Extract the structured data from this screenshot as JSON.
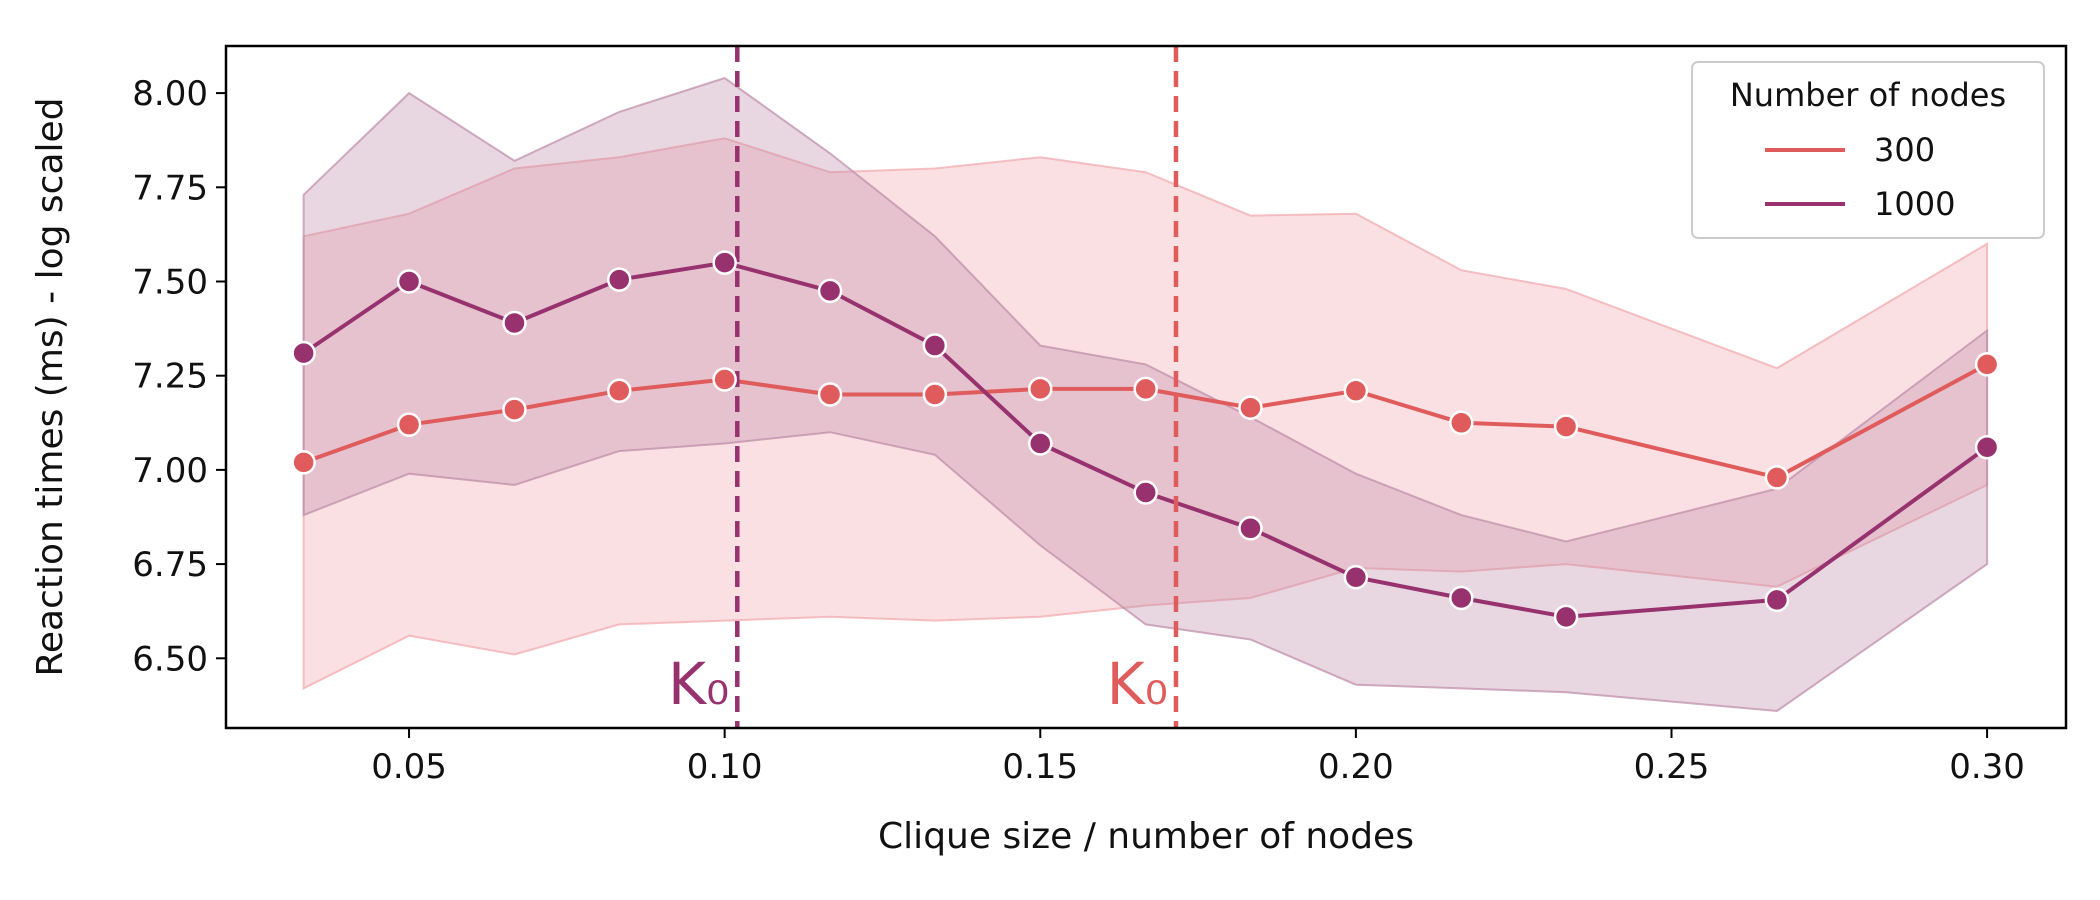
{
  "chart_data": {
    "type": "line",
    "xlabel": "Clique size / number of nodes",
    "ylabel": "Reaction times (ms) - log scaled",
    "xlim": [
      0.021,
      0.3125
    ],
    "ylim": [
      6.315,
      8.125
    ],
    "x_ticks": [
      0.05,
      0.1,
      0.15,
      0.2,
      0.25,
      0.3
    ],
    "x_tick_labels": [
      "0.05",
      "0.10",
      "0.15",
      "0.20",
      "0.25",
      "0.30"
    ],
    "y_ticks": [
      6.5,
      6.75,
      7.0,
      7.25,
      7.5,
      7.75,
      8.0
    ],
    "y_tick_labels": [
      "6.50",
      "6.75",
      "7.00",
      "7.25",
      "7.50",
      "7.75",
      "8.00"
    ],
    "grid": false,
    "legend": {
      "title": "Number of nodes",
      "placement": "top-right"
    },
    "series": [
      {
        "name": "300",
        "color": "#e05c5c",
        "band_color": "#f2a7ab",
        "marker": "circle",
        "x": [
          0.0333,
          0.05,
          0.0667,
          0.0833,
          0.1,
          0.1167,
          0.1333,
          0.15,
          0.1667,
          0.1833,
          0.2,
          0.2167,
          0.2333,
          0.2667,
          0.3
        ],
        "y": [
          7.02,
          7.12,
          7.16,
          7.21,
          7.24,
          7.2,
          7.2,
          7.215,
          7.215,
          7.165,
          7.21,
          7.125,
          7.115,
          6.98,
          7.28
        ],
        "ci_upper": [
          7.62,
          7.68,
          7.8,
          7.83,
          7.88,
          7.79,
          7.8,
          7.83,
          7.79,
          7.675,
          7.68,
          7.53,
          7.48,
          7.27,
          7.6
        ],
        "ci_lower": [
          6.42,
          6.56,
          6.51,
          6.59,
          6.6,
          6.61,
          6.6,
          6.61,
          6.64,
          6.66,
          6.74,
          6.73,
          6.75,
          6.69,
          6.96
        ]
      },
      {
        "name": "1000",
        "color": "#97326f",
        "band_color": "#bd8aa8",
        "marker": "circle",
        "x": [
          0.0333,
          0.05,
          0.0667,
          0.0833,
          0.1,
          0.1167,
          0.1333,
          0.15,
          0.1667,
          0.1833,
          0.2,
          0.2167,
          0.2333,
          0.2667,
          0.3
        ],
        "y": [
          7.31,
          7.5,
          7.39,
          7.505,
          7.55,
          7.475,
          7.33,
          7.07,
          6.94,
          6.845,
          6.715,
          6.66,
          6.61,
          6.655,
          7.06
        ],
        "ci_upper": [
          7.73,
          8.0,
          7.82,
          7.95,
          8.04,
          7.84,
          7.62,
          7.33,
          7.28,
          7.14,
          6.99,
          6.88,
          6.81,
          6.95,
          7.37
        ],
        "ci_lower": [
          6.88,
          6.99,
          6.96,
          7.05,
          7.07,
          7.1,
          7.04,
          6.8,
          6.59,
          6.55,
          6.43,
          6.42,
          6.41,
          6.36,
          6.75
        ]
      }
    ],
    "reference_lines": [
      {
        "x": 0.102,
        "color": "#97326f",
        "label": "K₀"
      },
      {
        "x": 0.1715,
        "color": "#e05c5c",
        "label": "K₀"
      }
    ]
  }
}
